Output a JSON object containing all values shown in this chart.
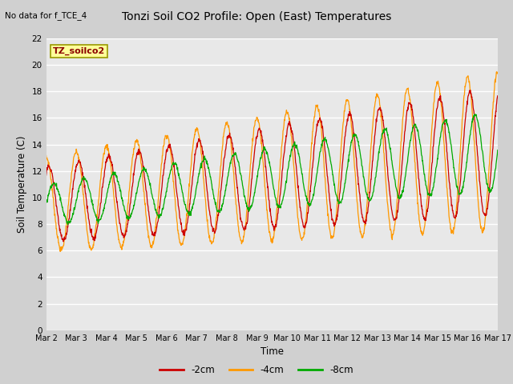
{
  "title": "Tonzi Soil CO2 Profile: Open (East) Temperatures",
  "no_data_note": "No data for f_TCE_4",
  "box_label": "TZ_soilco2",
  "ylabel": "Soil Temperature (C)",
  "xlabel": "Time",
  "ylim": [
    0,
    22
  ],
  "yticks": [
    0,
    2,
    4,
    6,
    8,
    10,
    12,
    14,
    16,
    18,
    20,
    22
  ],
  "xtick_labels": [
    "Mar 2",
    "Mar 3",
    "Mar 4",
    "Mar 5",
    "Mar 6",
    "Mar 7",
    "Mar 8",
    "Mar 9",
    "Mar 10",
    "Mar 11",
    "Mar 12",
    "Mar 13",
    "Mar 14",
    "Mar 15",
    "Mar 16",
    "Mar 17"
  ],
  "colors": {
    "neg2cm": "#cc0000",
    "neg4cm": "#ff9900",
    "neg8cm": "#00aa00"
  },
  "legend_labels": [
    "-2cm",
    "-4cm",
    "-8cm"
  ],
  "fig_bg_color": "#d0d0d0",
  "plot_bg_color": "#e8e8e8"
}
